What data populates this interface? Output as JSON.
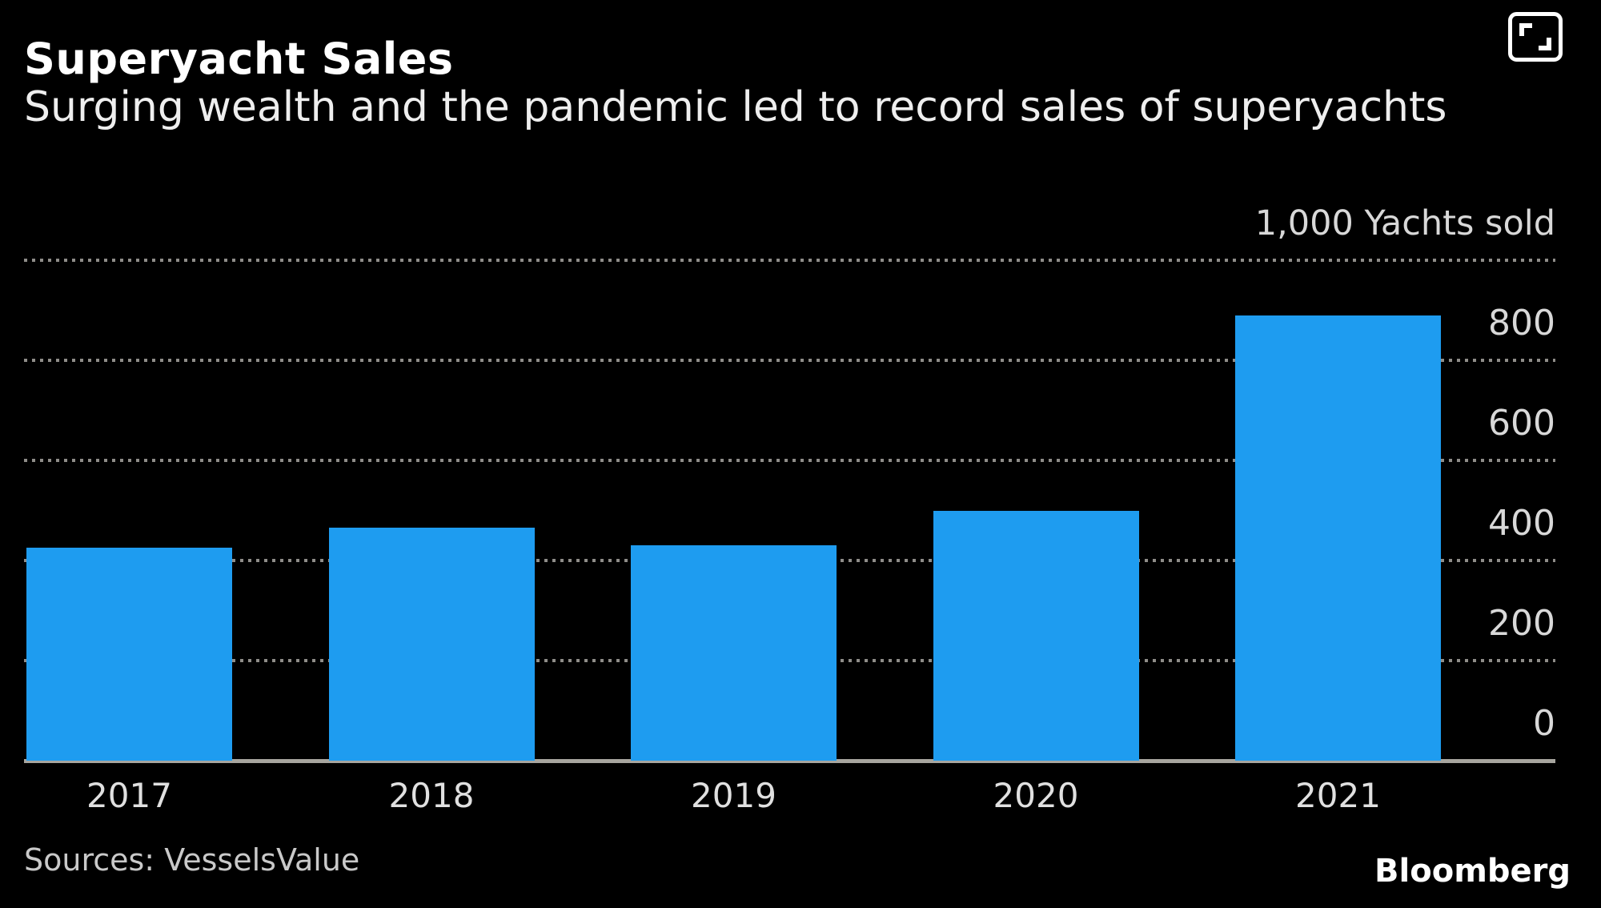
{
  "header": {
    "title": "Superyacht Sales",
    "subtitle": "Surging wealth and the pandemic led to record sales of superyachts"
  },
  "controls": {
    "expand_button": {
      "icon": "fullscreen-expand-icon"
    }
  },
  "footer": {
    "sources": "Sources: VesselsValue",
    "brand": "Bloomberg"
  },
  "theme": {
    "background": "#000000",
    "bar_color": "#1e9cf0",
    "grid_dot_color": "#8f8d89",
    "axis_line_color": "#a7a59f",
    "title_color": "#ffffff",
    "subtitle_color": "#eeeeee",
    "tick_label_color": "#d8d8d8",
    "x_label_color": "#e0e0e0",
    "source_color": "#c9c9c9"
  },
  "chart_data": {
    "type": "bar",
    "categories": [
      "2017",
      "2018",
      "2019",
      "2020",
      "2021"
    ],
    "values": [
      425,
      465,
      430,
      500,
      890
    ],
    "title": "Superyacht Sales",
    "subtitle": "Surging wealth and the pandemic led to record sales of superyachts",
    "axis_unit_label": "1,000 Yachts sold",
    "xlabel": "",
    "ylabel": "Yachts sold",
    "y_ticks": [
      0,
      200,
      400,
      600,
      800
    ],
    "ylim": [
      0,
      1000
    ],
    "grid": "dotted-horizontal",
    "y_axis_side": "right",
    "legend": "none",
    "source": "Sources: VesselsValue"
  }
}
